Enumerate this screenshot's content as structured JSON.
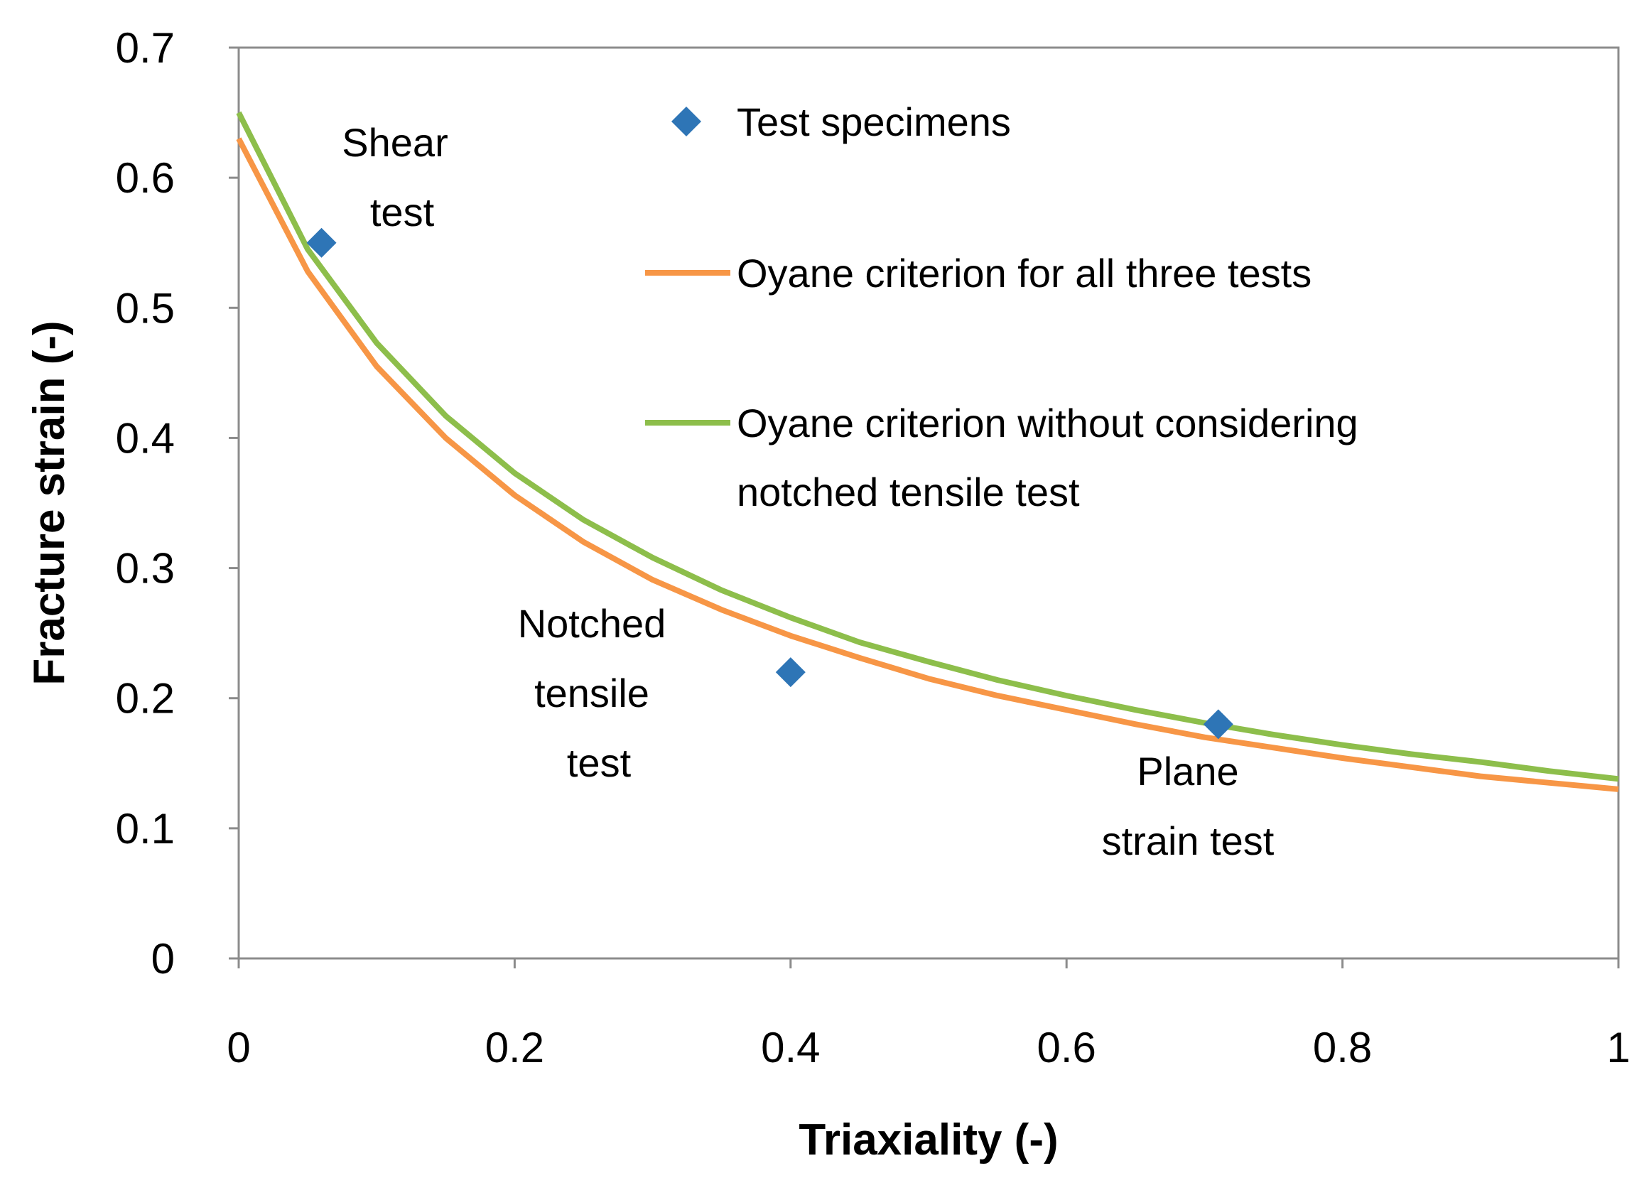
{
  "chart_data": {
    "type": "scatter",
    "title": "",
    "xlabel": "Triaxiality (-)",
    "ylabel": "Fracture strain (-)",
    "xlim": [
      0,
      1
    ],
    "ylim": [
      0,
      0.7
    ],
    "xticks": [
      0,
      0.2,
      0.4,
      0.6,
      0.8,
      1
    ],
    "xtick_labels": [
      "0",
      "0.2",
      "0.4",
      "0.6",
      "0.8",
      "1"
    ],
    "yticks": [
      0,
      0.1,
      0.2,
      0.3,
      0.4,
      0.5,
      0.6,
      0.7
    ],
    "ytick_labels": [
      "0",
      "0.1",
      "0.2",
      "0.3",
      "0.4",
      "0.5",
      "0.6",
      "0.7"
    ],
    "grid": false,
    "legend_position": "top-right inside plot",
    "series": [
      {
        "name": "Test specimens",
        "kind": "scatter",
        "marker": "diamond",
        "color": "#2E75B6",
        "x": [
          0.06,
          0.4,
          0.71
        ],
        "y": [
          0.55,
          0.22,
          0.18
        ]
      },
      {
        "name": "Oyane criterion for all three tests",
        "kind": "line",
        "color": "#F79646",
        "x": [
          0,
          0.05,
          0.1,
          0.15,
          0.2,
          0.25,
          0.3,
          0.35,
          0.4,
          0.45,
          0.5,
          0.55,
          0.6,
          0.65,
          0.7,
          0.75,
          0.8,
          0.85,
          0.9,
          0.95,
          1.0
        ],
        "y": [
          0.63,
          0.528,
          0.455,
          0.4,
          0.356,
          0.32,
          0.291,
          0.268,
          0.248,
          0.231,
          0.215,
          0.202,
          0.191,
          0.18,
          0.17,
          0.162,
          0.154,
          0.147,
          0.14,
          0.135,
          0.13
        ]
      },
      {
        "name": "Oyane criterion without considering notched tensile test",
        "legend_lines": [
          "Oyane criterion without considering",
          "notched tensile test"
        ],
        "kind": "line",
        "color": "#8DBE4B",
        "x": [
          0,
          0.05,
          0.1,
          0.15,
          0.2,
          0.25,
          0.3,
          0.35,
          0.4,
          0.45,
          0.5,
          0.55,
          0.6,
          0.65,
          0.7,
          0.75,
          0.8,
          0.85,
          0.9,
          0.95,
          1.0
        ],
        "y": [
          0.65,
          0.545,
          0.473,
          0.417,
          0.373,
          0.337,
          0.308,
          0.283,
          0.262,
          0.243,
          0.228,
          0.214,
          0.202,
          0.191,
          0.181,
          0.172,
          0.164,
          0.157,
          0.151,
          0.144,
          0.138
        ]
      }
    ],
    "annotations": [
      {
        "name": "shear",
        "lines": [
          "Shear",
          "test"
        ]
      },
      {
        "name": "notched",
        "lines": [
          "Notched",
          "tensile",
          "test"
        ]
      },
      {
        "name": "plane",
        "lines": [
          "Plane",
          "strain test"
        ]
      }
    ]
  }
}
